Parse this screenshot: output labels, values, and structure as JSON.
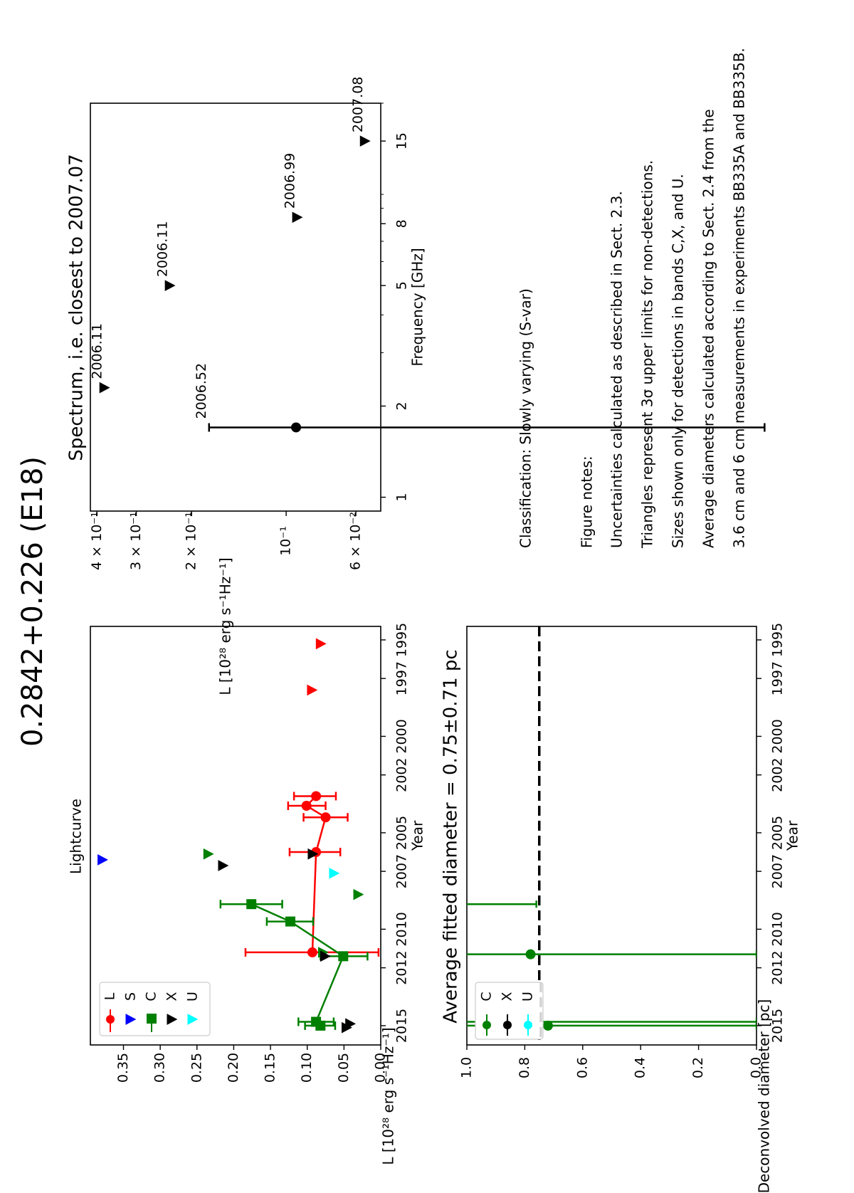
{
  "figure_title": "0.2842+0.226 (E18)",
  "chart_data": [
    {
      "id": "lightcurve",
      "type": "scatter",
      "title": "Lightcurve",
      "xlabel": "Year",
      "ylabel": "L [10²⁸ erg s⁻¹Hz⁻¹]",
      "xlim": [
        1994.3,
        2016.0
      ],
      "ylim": [
        0.0,
        0.395
      ],
      "xticks": [
        1995,
        1997,
        2000,
        2002,
        2005,
        2007,
        2010,
        2012,
        2015
      ],
      "yticks": [
        0.0,
        0.05,
        0.1,
        0.15,
        0.2,
        0.25,
        0.3,
        0.35
      ],
      "ytick_labels": [
        "0.00",
        "0.05",
        "0.10",
        "0.15",
        "0.20",
        "0.25",
        "0.30",
        "0.35"
      ],
      "legend_position": "bottom-left",
      "series": [
        {
          "name": "L",
          "color": "#ff0000",
          "marker": "circle",
          "line": true,
          "points": [
            [
              2003.1,
              0.088,
              0.118,
              0.061
            ],
            [
              2003.6,
              0.101,
              0.126,
              0.075
            ],
            [
              2004.2,
              0.075,
              0.105,
              0.045
            ],
            [
              2006.0,
              0.088,
              0.124,
              0.055
            ],
            [
              2011.2,
              0.093,
              0.184,
              0.003
            ]
          ],
          "upper_limits": [
            [
              1995.2,
              0.081
            ],
            [
              1997.6,
              0.093
            ]
          ]
        },
        {
          "name": "S",
          "color": "#0000ff",
          "marker": "circle",
          "line": false,
          "points": [],
          "upper_limits": [
            [
              2006.4,
              0.378
            ]
          ]
        },
        {
          "name": "C",
          "color": "#008000",
          "marker": "square",
          "line": true,
          "points": [
            [
              2008.7,
              0.176,
              0.218,
              0.134
            ],
            [
              2009.6,
              0.123,
              0.155,
              0.092
            ],
            [
              2011.4,
              0.051,
              0.082,
              0.018
            ],
            [
              2014.8,
              0.088,
              0.112,
              0.064
            ],
            [
              2015.0,
              0.082,
              0.103,
              0.062
            ]
          ],
          "upper_limits": [
            [
              2006.1,
              0.234
            ],
            [
              2008.2,
              0.03
            ],
            [
              2011.2,
              0.078
            ]
          ]
        },
        {
          "name": "X",
          "color": "#000000",
          "marker": "circle",
          "line": false,
          "points": [],
          "upper_limits": [
            [
              2006.1,
              0.092
            ],
            [
              2006.7,
              0.214
            ],
            [
              2011.4,
              0.075
            ],
            [
              2014.9,
              0.041
            ],
            [
              2015.1,
              0.046
            ]
          ]
        },
        {
          "name": "U",
          "color": "#00ffff",
          "marker": "circle",
          "line": false,
          "points": [],
          "upper_limits": [
            [
              2007.1,
              0.063
            ]
          ]
        }
      ]
    },
    {
      "id": "spectrum",
      "type": "scatter",
      "title": "Spectrum, i.e. closest to 2007.07",
      "xlabel": "Frequency [GHz]",
      "ylabel": "L [10²⁸ erg s⁻¹Hz⁻¹]",
      "xscale": "log",
      "yscale": "log",
      "xlim": [
        0.9,
        20.0
      ],
      "ylim": [
        0.05,
        0.42
      ],
      "xticks": [
        1,
        2,
        5,
        8,
        15
      ],
      "yticks": [
        0.4,
        0.3,
        0.2,
        0.1,
        0.06
      ],
      "ytick_labels": [
        "4 × 10⁻¹",
        "3 × 10⁻¹",
        "2 × 10⁻¹",
        "10⁻¹",
        "6 × 10⁻²"
      ],
      "detections": [
        {
          "freq": 1.7,
          "value": 0.093,
          "err_high": 0.176,
          "err_low": 0.003,
          "label": "2006.52"
        }
      ],
      "upper_limits": [
        {
          "freq": 2.3,
          "value": 0.378,
          "label": "2006.11"
        },
        {
          "freq": 5.0,
          "value": 0.234,
          "label": "2006.11"
        },
        {
          "freq": 8.4,
          "value": 0.092,
          "label": "2006.99"
        },
        {
          "freq": 15.0,
          "value": 0.056,
          "label": "2007.08"
        }
      ]
    },
    {
      "id": "diameter",
      "type": "scatter",
      "title": "Average fitted diameter = 0.75±0.71 pc",
      "xlabel": "Year",
      "ylabel": "Deconvolved diameter [pc]",
      "xlim": [
        1994.3,
        2016.0
      ],
      "ylim": [
        0.0,
        1.0
      ],
      "xticks": [
        1995,
        1997,
        2000,
        2002,
        2005,
        2007,
        2010,
        2012,
        2015
      ],
      "yticks": [
        0.0,
        0.2,
        0.4,
        0.6,
        0.8,
        1.0
      ],
      "ytick_labels": [
        "0.0",
        "0.2",
        "0.4",
        "0.6",
        "0.8",
        "1.0"
      ],
      "average": 0.75,
      "legend_position": "top-left",
      "series": [
        {
          "name": "C",
          "color": "#008000",
          "points": [
            [
              2008.7,
              1.6,
              1.6,
              0.76
            ],
            [
              2011.3,
              0.78,
              1.6,
              0.0
            ],
            [
              2014.8,
              0.78,
              1.6,
              0.0
            ],
            [
              2015.0,
              0.72,
              1.6,
              0.0
            ]
          ]
        },
        {
          "name": "X",
          "color": "#000000",
          "points": []
        },
        {
          "name": "U",
          "color": "#00ffff",
          "points": []
        }
      ]
    }
  ],
  "classification": "Classification: Slowly varying (S-var)",
  "notes": {
    "heading": "Figure notes:",
    "lines": [
      "Uncertainties calculated as described in Sect. 2.3.",
      "Triangles represent 3σ upper limits for non-detections.",
      "Sizes shown only for detections in bands C,X, and U.",
      "Average diameters calculated according to Sect. 2.4 from the",
      "3.6 cm and 6 cm measurements in experiments BB335A and BB335B."
    ]
  }
}
